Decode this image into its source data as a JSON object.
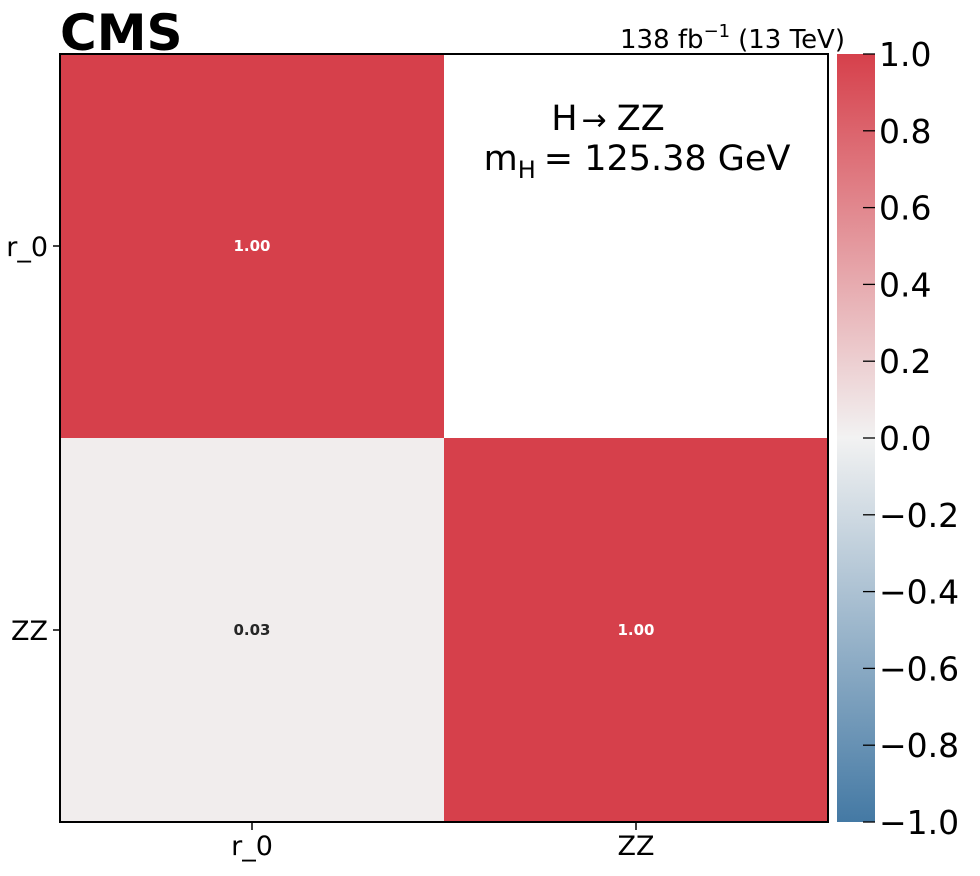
{
  "chart_data": {
    "type": "heatmap",
    "title": "CMS",
    "lumi": "138 fb",
    "lumi_exponent": "−1",
    "energy": "(13 TeV)",
    "annotation": {
      "process_prefix": "H",
      "arrow": "→",
      "process_suffix": "ZZ",
      "mass_symbol": "m",
      "mass_subscript": "H",
      "mass_value": "= 125.38 GeV"
    },
    "x_categories": [
      "r_0",
      "ZZ"
    ],
    "y_categories": [
      "r_0",
      "ZZ"
    ],
    "matrix": [
      [
        1.0,
        null
      ],
      [
        0.03,
        1.0
      ]
    ],
    "cell_labels": [
      [
        "1.00",
        ""
      ],
      [
        "0.03",
        "1.00"
      ]
    ],
    "colorbar": {
      "range": [
        -1.0,
        1.0
      ],
      "ticks": [
        "1.0",
        "0.8",
        "0.6",
        "0.4",
        "0.2",
        "0.0",
        "−0.2",
        "−0.4",
        "−0.6",
        "−0.8",
        "−1.0"
      ],
      "low_color": "#4479a4",
      "mid_color": "#f2f2f2",
      "high_color": "#d6404b"
    },
    "masked_color": "#ffffff",
    "grid": false
  }
}
